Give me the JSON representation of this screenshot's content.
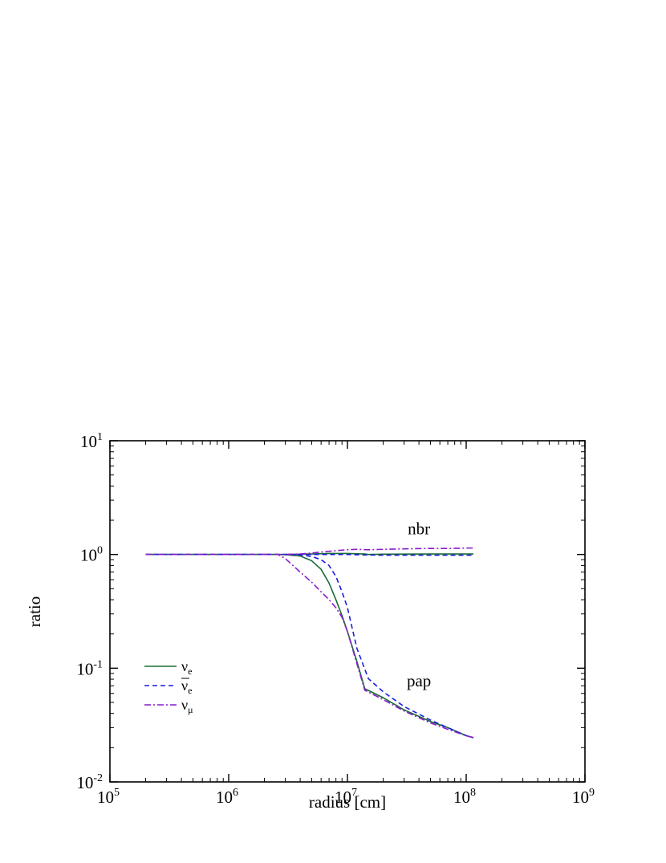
{
  "chart_data": {
    "type": "line",
    "xlabel": "radius [cm]",
    "ylabel": "ratio",
    "x_scale": "log",
    "y_scale": "log",
    "xlim": [
      100000,
      1000000000
    ],
    "ylim": [
      0.01,
      10
    ],
    "x_ticks": [
      {
        "value": 100000,
        "base": "10",
        "exp": "5"
      },
      {
        "value": 1000000,
        "base": "10",
        "exp": "6"
      },
      {
        "value": 10000000,
        "base": "10",
        "exp": "7"
      },
      {
        "value": 100000000,
        "base": "10",
        "exp": "8"
      },
      {
        "value": 1000000000,
        "base": "10",
        "exp": "9"
      }
    ],
    "y_ticks": [
      {
        "value": 0.01,
        "base": "10",
        "exp": "-2"
      },
      {
        "value": 0.1,
        "base": "10",
        "exp": "-1"
      },
      {
        "value": 1,
        "base": "10",
        "exp": "0"
      },
      {
        "value": 10,
        "base": "10",
        "exp": "1"
      }
    ],
    "grid": false,
    "legend_placement": "lower-left",
    "annotations": [
      {
        "text": "nbr",
        "x": 40000000,
        "y": 1.5
      },
      {
        "text": "pap",
        "x": 40000000,
        "y": 0.069
      }
    ],
    "series": [
      {
        "id": "nue",
        "legend": {
          "symbol": "ν",
          "sub": "e",
          "bar": false
        },
        "group": "pap",
        "color": "#1a6b35",
        "dash": "solid",
        "x": [
          200000,
          1000000,
          2500000,
          3000000,
          4000000,
          5000000,
          6000000,
          7000000,
          8000000,
          9000000,
          10000000,
          12000000,
          14000000,
          20000000,
          30000000,
          50000000,
          70000000,
          100000000,
          115000000
        ],
        "y": [
          1.0,
          1.0,
          1.0,
          0.995,
          0.97,
          0.88,
          0.74,
          0.56,
          0.4,
          0.29,
          0.21,
          0.115,
          0.066,
          0.055,
          0.043,
          0.034,
          0.03,
          0.0255,
          0.0245
        ]
      },
      {
        "id": "nue-bar",
        "legend": {
          "symbol": "ν",
          "sub": "e",
          "bar": true
        },
        "group": "pap",
        "color": "#1c1cdc",
        "dash": "dashed",
        "x": [
          200000,
          1000000,
          3000000,
          4000000,
          5000000,
          6000000,
          7000000,
          8000000,
          9000000,
          10000000,
          12000000,
          15000000,
          20000000,
          30000000,
          50000000,
          70000000,
          100000000,
          115000000
        ],
        "y": [
          1.0,
          1.0,
          1.0,
          0.99,
          0.96,
          0.9,
          0.8,
          0.64,
          0.47,
          0.34,
          0.15,
          0.081,
          0.062,
          0.046,
          0.035,
          0.03,
          0.0255,
          0.0245
        ]
      },
      {
        "id": "numu",
        "legend": {
          "symbol": "ν",
          "sub": "μ",
          "bar": false
        },
        "group": "pap",
        "color": "#8a1ccc",
        "dash": "dashdot",
        "x": [
          200000,
          1000000,
          2600000,
          3000000,
          4000000,
          5000000,
          6000000,
          7000000,
          8000000,
          9000000,
          10000000,
          12000000,
          14000000,
          20000000,
          30000000,
          50000000,
          70000000,
          100000000,
          115000000
        ],
        "y": [
          1.0,
          1.0,
          1.0,
          0.92,
          0.7,
          0.57,
          0.47,
          0.4,
          0.34,
          0.28,
          0.21,
          0.11,
          0.064,
          0.053,
          0.042,
          0.033,
          0.029,
          0.0255,
          0.0245
        ]
      },
      {
        "id": "nue-nbr",
        "group": "nbr",
        "color": "#1a6b35",
        "dash": "solid",
        "x": [
          200000,
          1000000,
          3000000,
          5000000,
          7000000,
          10000000,
          14000000,
          15000000,
          20000000,
          50000000,
          115000000
        ],
        "y": [
          1.0,
          1.0,
          1.0,
          1.01,
          1.02,
          1.02,
          1.01,
          1.0,
          1.005,
          1.01,
          1.01
        ]
      },
      {
        "id": "nue-bar-nbr",
        "group": "nbr",
        "color": "#1c1cdc",
        "dash": "dashed",
        "x": [
          200000,
          1000000,
          3000000,
          5000000,
          7000000,
          10000000,
          14000000,
          20000000,
          50000000,
          115000000
        ],
        "y": [
          1.0,
          1.0,
          1.0,
          1.0,
          1.0,
          1.0,
          0.99,
          0.985,
          0.985,
          0.985
        ]
      },
      {
        "id": "numu-nbr",
        "group": "nbr",
        "color": "#8a1ccc",
        "dash": "dashdot",
        "x": [
          200000,
          1000000,
          3000000,
          4000000,
          5000000,
          6000000,
          8000000,
          10000000,
          12000000,
          15000000,
          20000000,
          30000000,
          50000000,
          70000000,
          115000000
        ],
        "y": [
          1.0,
          1.0,
          1.0,
          1.01,
          1.03,
          1.05,
          1.08,
          1.1,
          1.11,
          1.1,
          1.11,
          1.12,
          1.13,
          1.13,
          1.14
        ]
      }
    ]
  }
}
